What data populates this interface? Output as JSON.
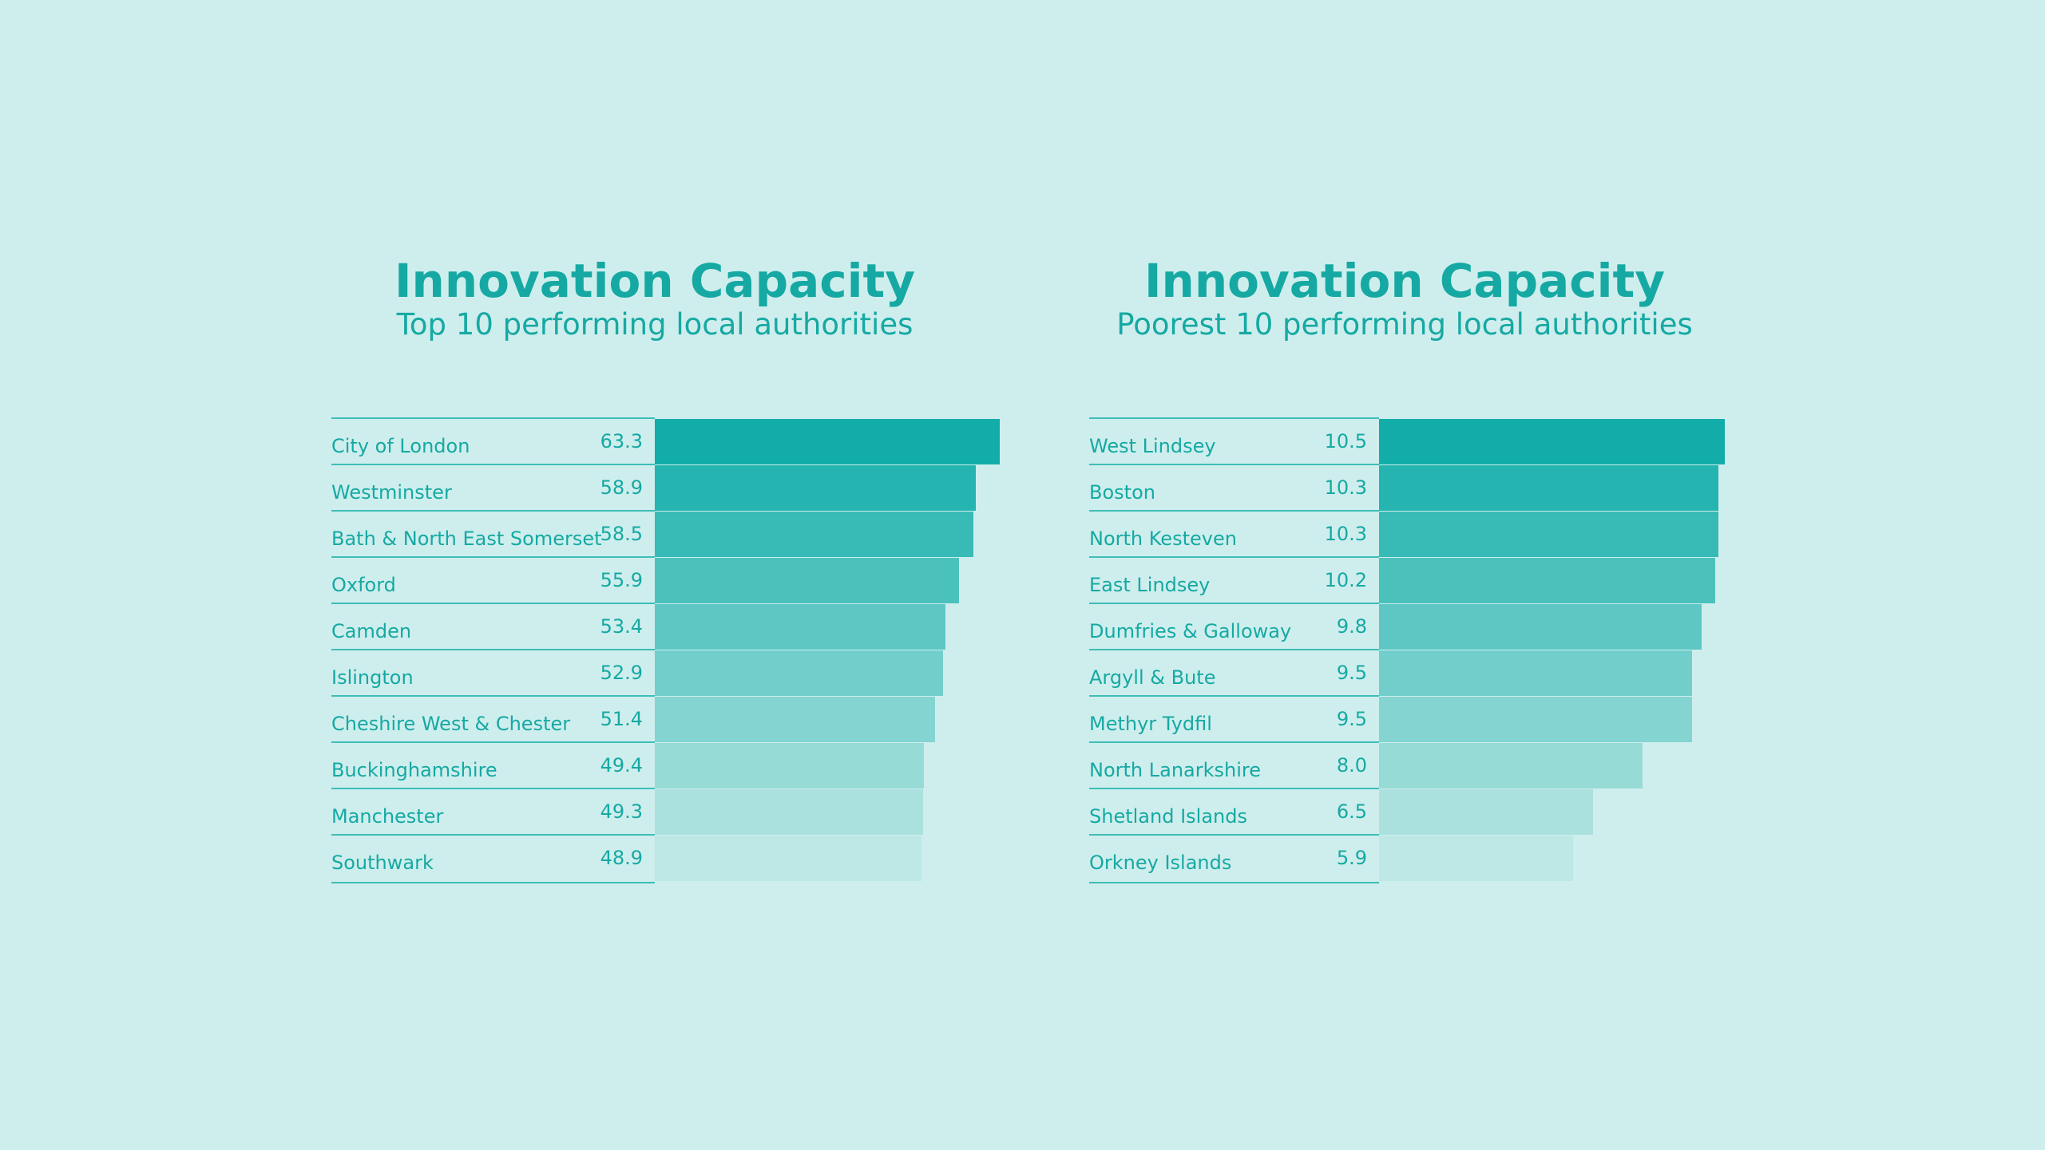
{
  "colors": {
    "background": "#ceeeed",
    "text": "#16a9a3",
    "bar_dark": "#12ada8",
    "bar_light": "#bde8e5"
  },
  "chart_data": [
    {
      "type": "bar",
      "orientation": "horizontal",
      "title": "Innovation Capacity",
      "subtitle": "Top 10 performing local authorities",
      "categories": [
        "City of London",
        "Westminster",
        "Bath & North East Somerset",
        "Oxford",
        "Camden",
        "Islington",
        "Cheshire West & Chester",
        "Buckinghamshire",
        "Manchester",
        "Southwark"
      ],
      "values": [
        63.3,
        58.9,
        58.5,
        55.9,
        53.4,
        52.9,
        51.4,
        49.4,
        49.3,
        48.9
      ],
      "value_labels": [
        "63.3",
        "58.9",
        "58.5",
        "55.9",
        "53.4",
        "52.9",
        "51.4",
        "49.4",
        "49.3",
        "48.9"
      ]
    },
    {
      "type": "bar",
      "orientation": "horizontal",
      "title": "Innovation Capacity",
      "subtitle": "Poorest 10 performing local authorities",
      "categories": [
        "West Lindsey",
        "Boston",
        "North Kesteven",
        "East Lindsey",
        "Dumfries & Galloway",
        "Argyll & Bute",
        "Methyr Tydfil",
        "North Lanarkshire",
        "Shetland Islands",
        "Orkney Islands"
      ],
      "values": [
        10.5,
        10.3,
        10.3,
        10.2,
        9.8,
        9.5,
        9.5,
        8.0,
        6.5,
        5.9
      ],
      "value_labels": [
        "10.5",
        "10.3",
        "10.3",
        "10.2",
        "9.8",
        "9.5",
        "9.5",
        "8.0",
        "6.5",
        "5.9"
      ]
    }
  ]
}
